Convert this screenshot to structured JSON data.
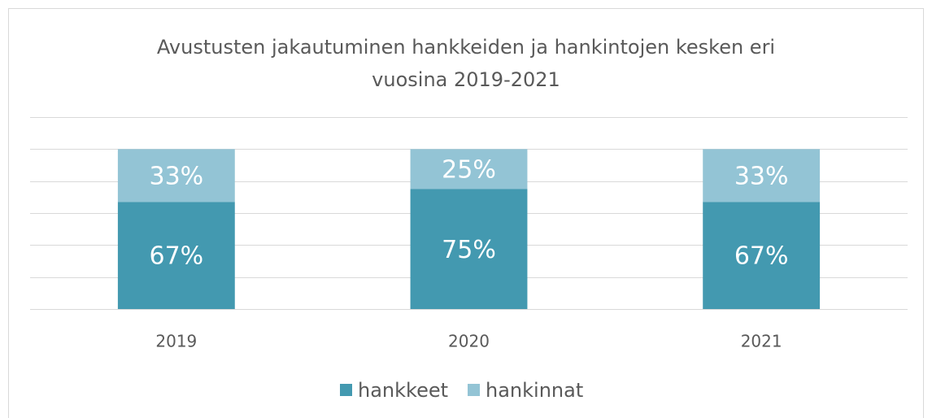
{
  "chart_data": {
    "type": "stacked_bar",
    "title": "Avustusten jakautuminen hankkeiden ja hankintojen kesken eri vuosina 2019-2021",
    "categories": [
      "2019",
      "2020",
      "2021"
    ],
    "series": [
      {
        "name": "hankkeet",
        "color": "#4399b0",
        "values": [
          67,
          75,
          67
        ],
        "value_labels": [
          "67%",
          "75%",
          "67%"
        ]
      },
      {
        "name": "hankinnat",
        "color": "#93c4d5",
        "values": [
          33,
          25,
          33
        ],
        "value_labels": [
          "33%",
          "25%",
          "33%"
        ]
      }
    ],
    "ylim": [
      0,
      120
    ],
    "yticks": [
      0,
      20,
      40,
      60,
      80,
      100,
      120
    ],
    "grid": true,
    "legend": "bottom"
  }
}
